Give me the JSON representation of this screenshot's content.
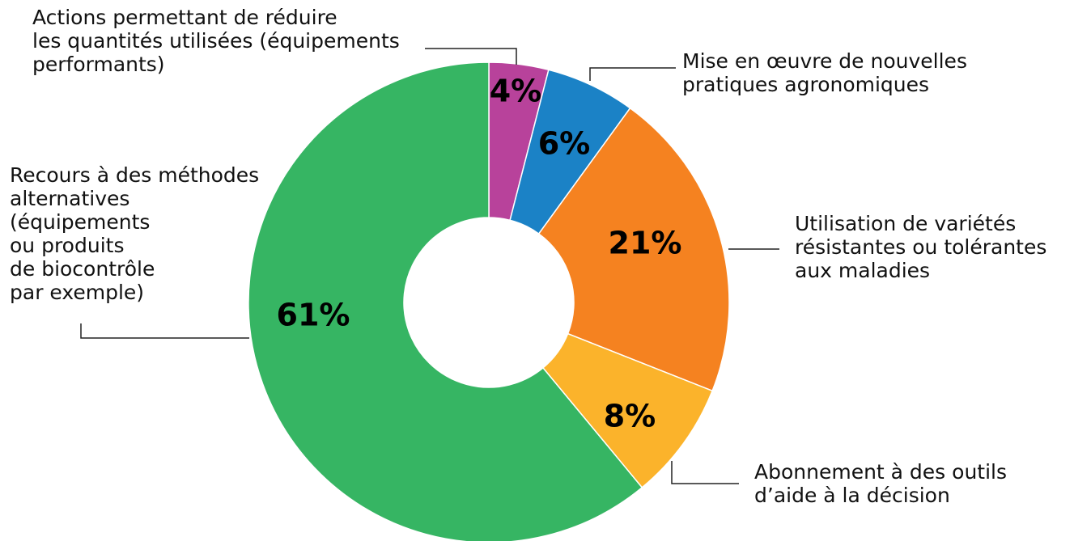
{
  "chart_data": {
    "type": "donut",
    "categories": [
      "Actions permettant de réduire\nles quantités utilisées (équipements\nperformants)",
      "Mise en œuvre de nouvelles\npratiques agronomiques",
      "Utilisation de variétés\nrésistantes ou tolérantes\naux maladies",
      "Abonnement à des outils\nd’aide à la décision",
      "Recours à des méthodes\nalternatives\n(équipements\nou produits\nde biocontrôle\npar exemple)"
    ],
    "values": [
      4,
      6,
      21,
      8,
      61
    ],
    "value_labels": [
      "4%",
      "6%",
      "21%",
      "8%",
      "61%"
    ],
    "colors": [
      "#b8429b",
      "#1b82c6",
      "#f58220",
      "#fbb32b",
      "#36b563"
    ]
  }
}
